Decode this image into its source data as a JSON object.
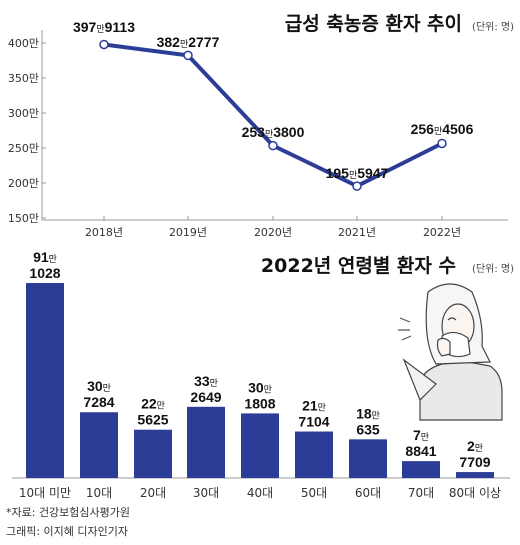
{
  "colors": {
    "series": "#2b3d97",
    "axis": "#999999",
    "text": "#111111"
  },
  "icons": {
    "illustration": "sneezing-woman-illustration"
  },
  "chart_data": [
    {
      "type": "line",
      "title": "급성 축농증 환자 추이",
      "unit": "(단위: 명)",
      "x": [
        "2018년",
        "2019년",
        "2020년",
        "2021년",
        "2022년"
      ],
      "values": [
        3979113,
        3822777,
        2533800,
        1955947,
        2564506
      ],
      "value_labels": [
        {
          "big": "397",
          "small": "만",
          "rest": "9113"
        },
        {
          "big": "382",
          "small": "만",
          "rest": "2777"
        },
        {
          "big": "253",
          "small": "만",
          "rest": "3800"
        },
        {
          "big": "195",
          "small": "만",
          "rest": "5947"
        },
        {
          "big": "256",
          "small": "만",
          "rest": "4506"
        }
      ],
      "y_ticks": [
        "400만",
        "350만",
        "300만",
        "250만",
        "200만",
        "150만"
      ],
      "ylim": [
        1500000,
        4000000
      ],
      "grid": false
    },
    {
      "type": "bar",
      "title": "2022년 연령별 환자 수",
      "unit": "(단위: 명)",
      "categories": [
        "10대 미만",
        "10대",
        "20대",
        "30대",
        "40대",
        "50대",
        "60대",
        "70대",
        "80대 이상"
      ],
      "values": [
        911028,
        307284,
        225625,
        332649,
        301808,
        217104,
        180635,
        78841,
        27709
      ],
      "value_labels": [
        {
          "big": "91",
          "small": "만",
          "rest": "1028"
        },
        {
          "big": "30",
          "small": "만",
          "rest": "7284"
        },
        {
          "big": "22",
          "small": "만",
          "rest": "5625"
        },
        {
          "big": "33",
          "small": "만",
          "rest": "2649"
        },
        {
          "big": "30",
          "small": "만",
          "rest": "1808"
        },
        {
          "big": "21",
          "small": "만",
          "rest": "7104"
        },
        {
          "big": "18",
          "small": "만",
          "rest": "635"
        },
        {
          "big": "7",
          "small": "만",
          "rest": "8841"
        },
        {
          "big": "2",
          "small": "만",
          "rest": "7709"
        }
      ],
      "grid": false
    }
  ],
  "footer": {
    "source": "*자료: 건강보험심사평가원",
    "credit": "그래픽: 이지혜 디자인기자"
  }
}
